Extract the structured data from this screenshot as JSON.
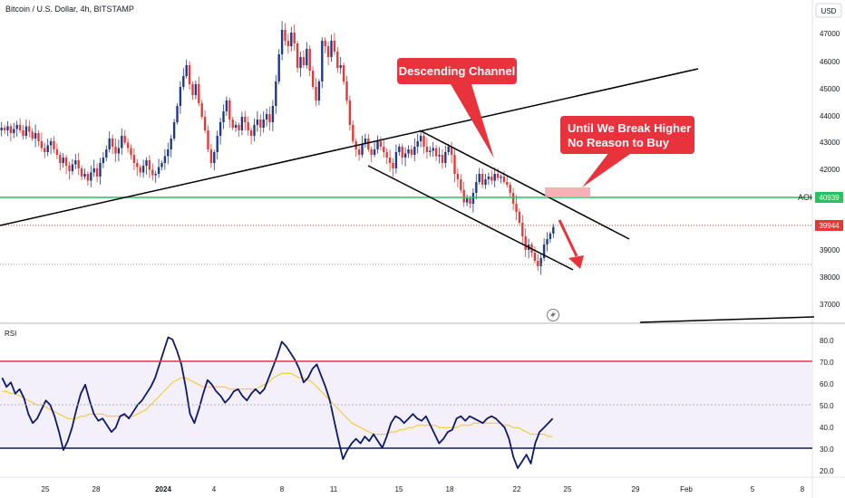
{
  "header": {
    "title": "Bitcoin / U.S. Dollar, 4h, BITSTAMP",
    "currency_button": "USD"
  },
  "price_axis": {
    "ticks": [
      "47000",
      "46000",
      "45000",
      "44000",
      "43000",
      "42000",
      "39000",
      "38000",
      "37000"
    ],
    "aoi_label": "AOI",
    "aoi_value": "40939",
    "last_price": "39944"
  },
  "rsi": {
    "label": "RSI",
    "ticks": [
      "80.0",
      "70.0",
      "60.0",
      "50.0",
      "40.0",
      "30.0",
      "20.0"
    ]
  },
  "time_axis": {
    "labels": [
      "25",
      "28",
      "2024",
      "4",
      "8",
      "11",
      "15",
      "18",
      "22",
      "25",
      "29",
      "Feb",
      "5",
      "8"
    ]
  },
  "annotations": {
    "descending_channel": "Descending Channel",
    "callout_line1": "Until We Break Higher",
    "callout_line2": "No Reason to Buy"
  },
  "colors": {
    "up_candle": "#1e3a8a",
    "down_candle": "#e53935",
    "aoi_line": "#22c55e",
    "aoi_zone": "#f4a3a8",
    "annotation_bg": "#e8323c",
    "rsi_line": "#0d1a6b",
    "rsi_ma": "#f5c518",
    "rsi_upper": "#e53935",
    "rsi_lower": "#0d1a6b"
  },
  "chart_data": [
    {
      "type": "candlestick",
      "title": "Bitcoin / U.S. Dollar, 4h, BITSTAMP",
      "ylabel": "USD",
      "ylim": [
        36400,
        48300
      ],
      "key_levels": {
        "aoi": 40939,
        "last_price": 39944,
        "dotted_support": 38500
      },
      "closes": [
        43600,
        43500,
        43650,
        43400,
        43550,
        43700,
        43500,
        43300,
        43650,
        43450,
        43200,
        43400,
        43100,
        42850,
        42700,
        42950,
        43100,
        42800,
        42600,
        42300,
        42500,
        42200,
        42000,
        42250,
        42400,
        42100,
        41800,
        41900,
        41650,
        41950,
        42100,
        41800,
        42300,
        42500,
        42800,
        43200,
        42900,
        42650,
        42850,
        43300,
        43050,
        42850,
        42600,
        42300,
        42150,
        41950,
        42200,
        42400,
        42050,
        41850,
        41900,
        42150,
        42300,
        42550,
        42800,
        43200,
        43800,
        44400,
        45100,
        45500,
        45900,
        45200,
        44800,
        45200,
        44500,
        44000,
        43500,
        42800,
        42300,
        42700,
        43300,
        43800,
        44200,
        44600,
        43900,
        43600,
        43700,
        43500,
        44000,
        43800,
        43500,
        43300,
        43700,
        43900,
        43600,
        43900,
        44100,
        43800,
        44400,
        45300,
        46300,
        47200,
        46800,
        46600,
        47100,
        46700,
        45800,
        46200,
        45900,
        46500,
        45700,
        45100,
        44600,
        45300,
        46800,
        46600,
        46200,
        46800,
        46400,
        45800,
        45900,
        45300,
        44600,
        43700,
        43100,
        42800,
        42600,
        43000,
        43200,
        42800,
        42600,
        42800,
        43100,
        42900,
        42700,
        42500,
        42300,
        42100,
        42700,
        42900,
        42500,
        42650,
        42800,
        42600,
        42900,
        43100,
        43300,
        42900,
        42700,
        42750,
        42850,
        42550,
        42600,
        42300,
        42700,
        42900,
        42600,
        41900,
        41700,
        41300,
        40850,
        41000,
        40800,
        41200,
        41600,
        41900,
        41500,
        41700,
        41800,
        41650,
        41900,
        41750,
        41800,
        41600,
        41500,
        41200,
        40800,
        40500,
        40100,
        39600,
        39100,
        39300,
        39000,
        38700,
        38500,
        38800,
        39300,
        39500,
        39700,
        39944
      ],
      "rsi": {
        "values": [
          62,
          58,
          60,
          55,
          57,
          53,
          46,
          42,
          44,
          48,
          52,
          50,
          45,
          38,
          30,
          34,
          40,
          48,
          55,
          59,
          52,
          46,
          43,
          44,
          41,
          38,
          40,
          45,
          46,
          44,
          47,
          50,
          52,
          55,
          58,
          62,
          68,
          74,
          80,
          79,
          74,
          68,
          58,
          46,
          42,
          48,
          55,
          61,
          59,
          56,
          54,
          51,
          53,
          56,
          57,
          54,
          52,
          55,
          57,
          55,
          57,
          62,
          67,
          72,
          78,
          76,
          73,
          70,
          66,
          60,
          62,
          66,
          68,
          63,
          58,
          52,
          43,
          34,
          26,
          30,
          33,
          35,
          33,
          36,
          34,
          37,
          34,
          31,
          36,
          42,
          45,
          44,
          42,
          44,
          46,
          44,
          43,
          45,
          41,
          37,
          33,
          35,
          38,
          39,
          44,
          45,
          43,
          45,
          44,
          43,
          42,
          44,
          45,
          44,
          42,
          40,
          35,
          27,
          22,
          25,
          28,
          24,
          33,
          38,
          40,
          42,
          44
        ],
        "ma": [
          56,
          56,
          55,
          55,
          54,
          53,
          52,
          51,
          50,
          50,
          49,
          48,
          47,
          46,
          45,
          44,
          44,
          44,
          45,
          45,
          46,
          46,
          46,
          46,
          45,
          45,
          45,
          45,
          45,
          45,
          45,
          46,
          47,
          48,
          50,
          52,
          54,
          56,
          58,
          60,
          61,
          62,
          62,
          61,
          60,
          59,
          58,
          58,
          58,
          58,
          58,
          58,
          57,
          57,
          57,
          57,
          57,
          57,
          57,
          58,
          59,
          60,
          62,
          63,
          64,
          64,
          64,
          63,
          62,
          62,
          61,
          60,
          58,
          56,
          54,
          52,
          50,
          48,
          46,
          44,
          42,
          41,
          40,
          39,
          38,
          37,
          37,
          37,
          37,
          38,
          38,
          39,
          39,
          40,
          40,
          41,
          41,
          41,
          41,
          41,
          40,
          40,
          40,
          40,
          40,
          41,
          41,
          41,
          42,
          42,
          42,
          42,
          42,
          42,
          42,
          41,
          41,
          40,
          40,
          39,
          38,
          37,
          37,
          37,
          37,
          36,
          36
        ],
        "overbought": 70,
        "oversold": 30,
        "ylim": [
          18,
          85
        ]
      }
    }
  ]
}
